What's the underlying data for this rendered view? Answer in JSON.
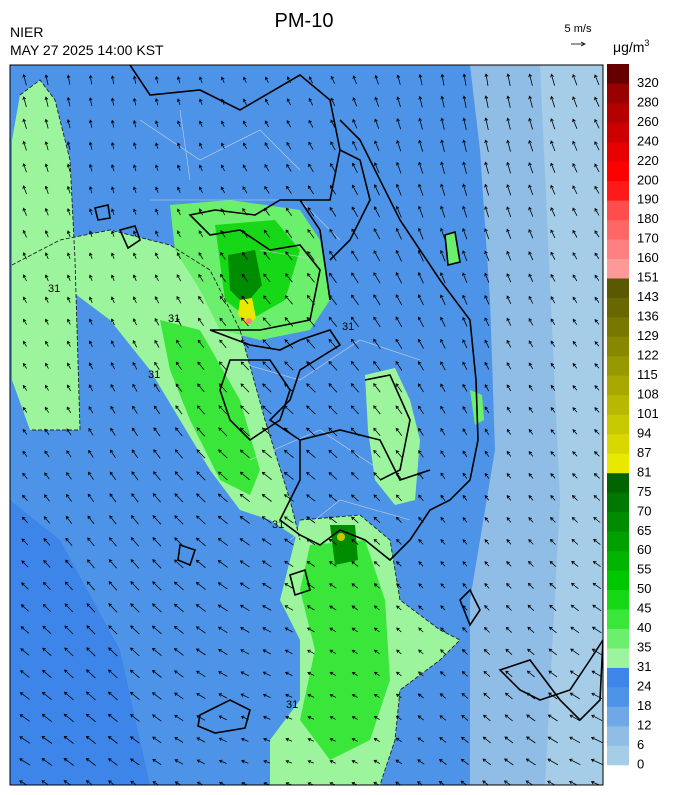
{
  "title": "PM-10",
  "agency": "NIER",
  "datetime": "MAY 27 2025 14:00 KST",
  "vector_scale": "5 m/s",
  "unit": "μg/m",
  "unit_sup": "3",
  "contour_labels": [
    "31",
    "31",
    "31",
    "31",
    "31",
    "31"
  ],
  "legend": {
    "labels": [
      "0",
      "6",
      "12",
      "18",
      "24",
      "31",
      "35",
      "40",
      "45",
      "50",
      "55",
      "60",
      "65",
      "70",
      "75",
      "81",
      "87",
      "94",
      "101",
      "108",
      "115",
      "122",
      "129",
      "136",
      "143",
      "151",
      "160",
      "170",
      "180",
      "190",
      "200",
      "220",
      "240",
      "260",
      "280",
      "320"
    ],
    "colors": [
      "#a6cde8",
      "#8fbde6",
      "#6fa8e6",
      "#4d94e8",
      "#3d85e8",
      "#9cf59c",
      "#6cef6c",
      "#3be63b",
      "#16d816",
      "#00c800",
      "#00b400",
      "#00a000",
      "#008c00",
      "#007800",
      "#006400",
      "#e8e800",
      "#d8d800",
      "#c8c800",
      "#b8b800",
      "#a8a800",
      "#989800",
      "#888800",
      "#787800",
      "#686800",
      "#585800",
      "#ff9999",
      "#ff8080",
      "#ff6666",
      "#ff4d4d",
      "#ff1a1a",
      "#ff0000",
      "#e60000",
      "#cc0000",
      "#b30000",
      "#990000",
      "#660000"
    ]
  }
}
